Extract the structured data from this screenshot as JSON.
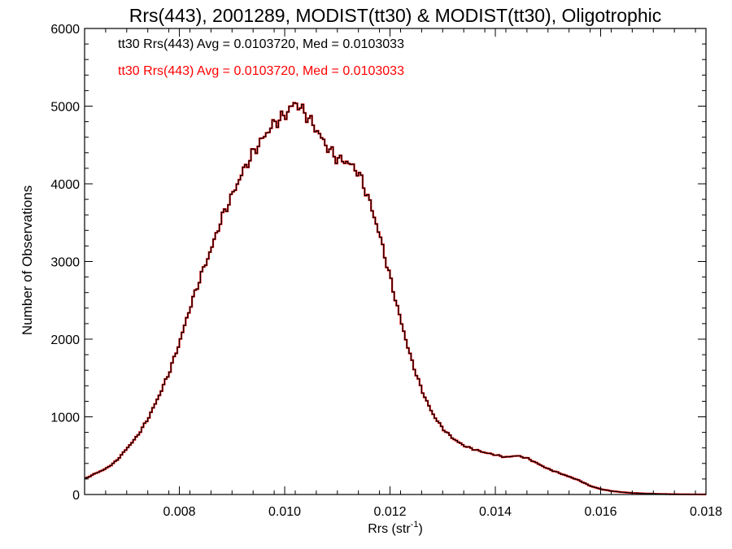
{
  "chart_data": {
    "type": "histogram",
    "title": "Rrs(443), 2001289, MODIST(tt30) & MODIST(tt30), Oligotrophic",
    "xlabel_main": "Rrs (str",
    "xlabel_sup": "-1",
    "xlabel_close": ")",
    "ylabel": "Number of Observations",
    "xlim": [
      0.0062,
      0.018
    ],
    "ylim": [
      0,
      6000
    ],
    "x_ticks": [
      0.008,
      0.01,
      0.012,
      0.014,
      0.016,
      0.018
    ],
    "x_tick_labels": [
      "0.008",
      "0.010",
      "0.012",
      "0.014",
      "0.016",
      "0.018"
    ],
    "y_ticks": [
      0,
      1000,
      2000,
      3000,
      4000,
      5000,
      6000
    ],
    "y_tick_labels": [
      "0",
      "1000",
      "2000",
      "3000",
      "4000",
      "5000",
      "6000"
    ],
    "grid": false,
    "legend_position": "top-left",
    "legend": [
      {
        "text": "tt30 Rrs(443) Avg = 0.0103720, Med = 0.0103033",
        "color": "#000000"
      },
      {
        "text": "tt30 Rrs(443) Avg = 0.0103720, Med = 0.0103033",
        "color": "#ff0000"
      }
    ],
    "series": [
      {
        "color": "#ff0000",
        "drawstyle": "steps",
        "points": [
          [
            0.0062,
            200
          ],
          [
            0.0064,
            270
          ],
          [
            0.0066,
            330
          ],
          [
            0.0068,
            430
          ],
          [
            0.007,
            590
          ],
          [
            0.0072,
            750
          ],
          [
            0.0074,
            970
          ],
          [
            0.0076,
            1250
          ],
          [
            0.0078,
            1560
          ],
          [
            0.008,
            1950
          ],
          [
            0.0082,
            2400
          ],
          [
            0.0084,
            2800
          ],
          [
            0.0086,
            3150
          ],
          [
            0.0088,
            3550
          ],
          [
            0.009,
            3850
          ],
          [
            0.0092,
            4150
          ],
          [
            0.0094,
            4400
          ],
          [
            0.0096,
            4600
          ],
          [
            0.0098,
            4780
          ],
          [
            0.01,
            4880
          ],
          [
            0.0102,
            5050
          ],
          [
            0.0104,
            4900
          ],
          [
            0.0106,
            4700
          ],
          [
            0.0108,
            4480
          ],
          [
            0.011,
            4320
          ],
          [
            0.0112,
            4280
          ],
          [
            0.0114,
            4150
          ],
          [
            0.0116,
            3800
          ],
          [
            0.0118,
            3350
          ],
          [
            0.012,
            2800
          ],
          [
            0.0122,
            2250
          ],
          [
            0.0124,
            1750
          ],
          [
            0.0126,
            1350
          ],
          [
            0.0128,
            1050
          ],
          [
            0.013,
            850
          ],
          [
            0.0132,
            720
          ],
          [
            0.0134,
            630
          ],
          [
            0.0136,
            580
          ],
          [
            0.0138,
            540
          ],
          [
            0.014,
            510
          ],
          [
            0.0142,
            480
          ],
          [
            0.0144,
            500
          ],
          [
            0.0146,
            470
          ],
          [
            0.0148,
            400
          ],
          [
            0.015,
            330
          ],
          [
            0.0152,
            280
          ],
          [
            0.0154,
            230
          ],
          [
            0.0156,
            180
          ],
          [
            0.0158,
            110
          ],
          [
            0.016,
            70
          ],
          [
            0.0162,
            45
          ],
          [
            0.0164,
            30
          ],
          [
            0.0166,
            20
          ],
          [
            0.0168,
            14
          ],
          [
            0.017,
            10
          ],
          [
            0.0172,
            6
          ],
          [
            0.0174,
            4
          ],
          [
            0.0176,
            3
          ],
          [
            0.0178,
            2
          ],
          [
            0.018,
            1
          ]
        ]
      },
      {
        "color": "#000000",
        "drawstyle": "steps",
        "points": [
          [
            0.0062,
            200
          ],
          [
            0.0064,
            270
          ],
          [
            0.0066,
            330
          ],
          [
            0.0068,
            430
          ],
          [
            0.007,
            590
          ],
          [
            0.0072,
            750
          ],
          [
            0.0074,
            970
          ],
          [
            0.0076,
            1250
          ],
          [
            0.0078,
            1560
          ],
          [
            0.008,
            1950
          ],
          [
            0.0082,
            2400
          ],
          [
            0.0084,
            2800
          ],
          [
            0.0086,
            3150
          ],
          [
            0.0088,
            3550
          ],
          [
            0.009,
            3850
          ],
          [
            0.0092,
            4150
          ],
          [
            0.0094,
            4400
          ],
          [
            0.0096,
            4600
          ],
          [
            0.0098,
            4780
          ],
          [
            0.01,
            4880
          ],
          [
            0.0102,
            5050
          ],
          [
            0.0104,
            4900
          ],
          [
            0.0106,
            4700
          ],
          [
            0.0108,
            4480
          ],
          [
            0.011,
            4320
          ],
          [
            0.0112,
            4280
          ],
          [
            0.0114,
            4150
          ],
          [
            0.0116,
            3800
          ],
          [
            0.0118,
            3350
          ],
          [
            0.012,
            2800
          ],
          [
            0.0122,
            2250
          ],
          [
            0.0124,
            1750
          ],
          [
            0.0126,
            1350
          ],
          [
            0.0128,
            1050
          ],
          [
            0.013,
            850
          ],
          [
            0.0132,
            720
          ],
          [
            0.0134,
            630
          ],
          [
            0.0136,
            580
          ],
          [
            0.0138,
            540
          ],
          [
            0.014,
            510
          ],
          [
            0.0142,
            480
          ],
          [
            0.0144,
            500
          ],
          [
            0.0146,
            470
          ],
          [
            0.0148,
            400
          ],
          [
            0.015,
            330
          ],
          [
            0.0152,
            280
          ],
          [
            0.0154,
            230
          ],
          [
            0.0156,
            180
          ],
          [
            0.0158,
            110
          ],
          [
            0.016,
            70
          ],
          [
            0.0162,
            45
          ],
          [
            0.0164,
            30
          ],
          [
            0.0166,
            20
          ],
          [
            0.0168,
            14
          ],
          [
            0.017,
            10
          ],
          [
            0.0172,
            6
          ],
          [
            0.0174,
            4
          ],
          [
            0.0176,
            3
          ],
          [
            0.0178,
            2
          ],
          [
            0.018,
            1
          ]
        ]
      }
    ]
  }
}
